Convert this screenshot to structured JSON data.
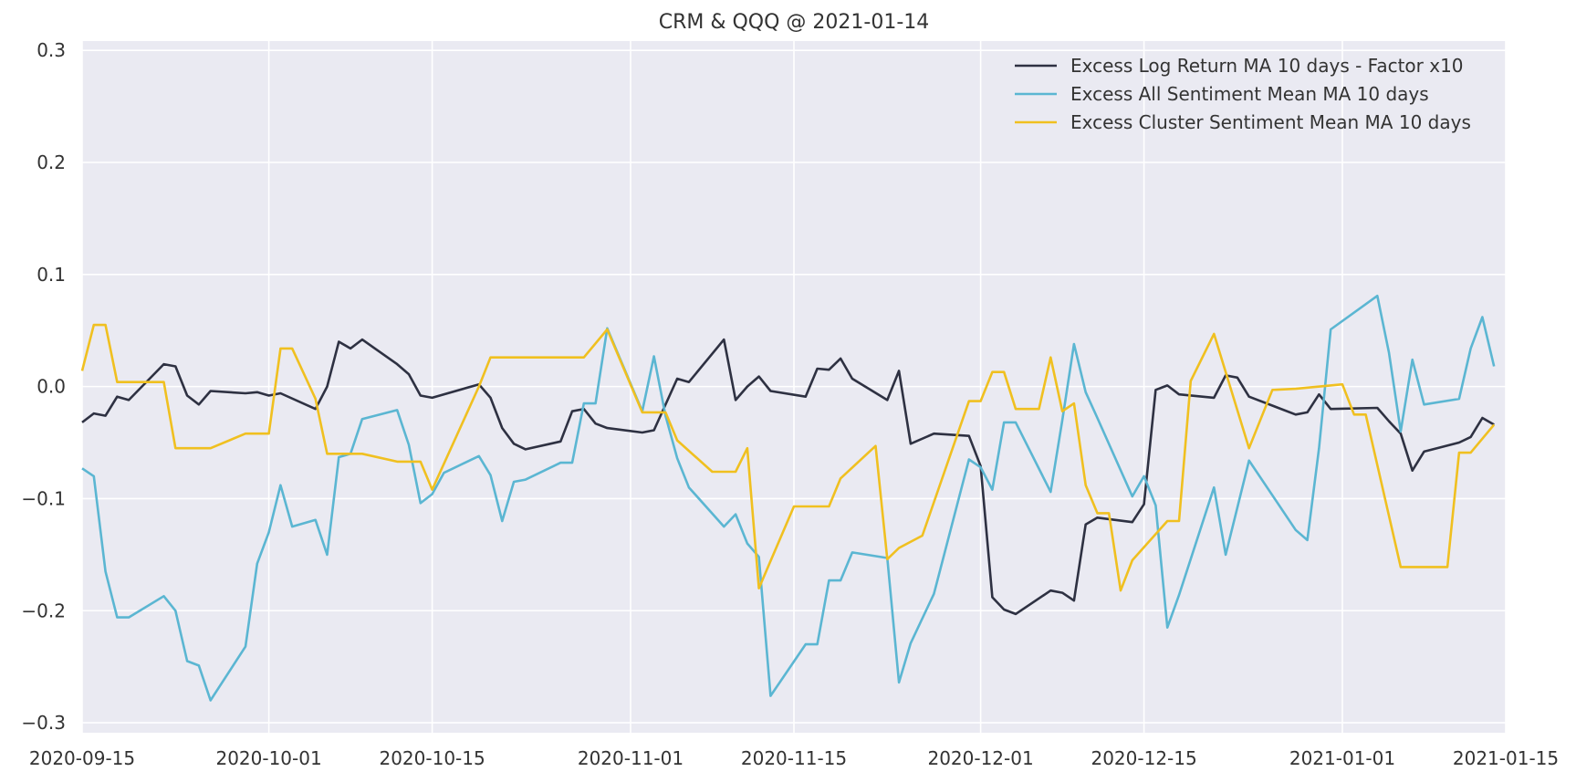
{
  "chart_data": {
    "type": "line",
    "title": "CRM & QQQ @ 2021-01-14",
    "xlabel": "",
    "ylabel": "",
    "x_axis": {
      "kind": "date",
      "range": [
        "2020-09-15",
        "2021-01-15"
      ],
      "ticks": [
        "2020-09-15",
        "2020-10-01",
        "2020-10-15",
        "2020-11-01",
        "2020-11-15",
        "2020-12-01",
        "2020-12-15",
        "2021-01-01",
        "2021-01-15"
      ]
    },
    "y_axis": {
      "range": [
        -0.3,
        0.3
      ],
      "ticks": [
        -0.3,
        -0.2,
        -0.1,
        0.0,
        0.1,
        0.2,
        0.3
      ],
      "tick_labels": [
        "−0.3",
        "−0.2",
        "−0.1",
        "0.0",
        "0.1",
        "0.2",
        "0.3"
      ]
    },
    "grid": true,
    "legend_position": "top-right",
    "background": "#EAEAF2",
    "series": [
      {
        "name": "Excess Log Return MA 10 days - Factor x10",
        "color": "#2E3142",
        "points": [
          [
            "2020-09-15",
            -0.032
          ],
          [
            "2020-09-16",
            -0.024
          ],
          [
            "2020-09-17",
            -0.026
          ],
          [
            "2020-09-18",
            -0.009
          ],
          [
            "2020-09-19",
            -0.012
          ],
          [
            "2020-09-22",
            0.02
          ],
          [
            "2020-09-23",
            0.018
          ],
          [
            "2020-09-24",
            -0.008
          ],
          [
            "2020-09-25",
            -0.016
          ],
          [
            "2020-09-26",
            -0.004
          ],
          [
            "2020-09-29",
            -0.006
          ],
          [
            "2020-09-30",
            -0.005
          ],
          [
            "2020-10-01",
            -0.008
          ],
          [
            "2020-10-02",
            -0.006
          ],
          [
            "2020-10-05",
            -0.02
          ],
          [
            "2020-10-06",
            0.0
          ],
          [
            "2020-10-07",
            0.04
          ],
          [
            "2020-10-08",
            0.034
          ],
          [
            "2020-10-09",
            0.042
          ],
          [
            "2020-10-12",
            0.02
          ],
          [
            "2020-10-13",
            0.011
          ],
          [
            "2020-10-14",
            -0.008
          ],
          [
            "2020-10-15",
            -0.01
          ],
          [
            "2020-10-19",
            0.002
          ],
          [
            "2020-10-20",
            -0.01
          ],
          [
            "2020-10-21",
            -0.037
          ],
          [
            "2020-10-22",
            -0.051
          ],
          [
            "2020-10-23",
            -0.056
          ],
          [
            "2020-10-26",
            -0.049
          ],
          [
            "2020-10-27",
            -0.022
          ],
          [
            "2020-10-28",
            -0.02
          ],
          [
            "2020-10-29",
            -0.033
          ],
          [
            "2020-10-30",
            -0.037
          ],
          [
            "2020-11-02",
            -0.041
          ],
          [
            "2020-11-03",
            -0.039
          ],
          [
            "2020-11-05",
            0.007
          ],
          [
            "2020-11-06",
            0.004
          ],
          [
            "2020-11-09",
            0.042
          ],
          [
            "2020-11-10",
            -0.012
          ],
          [
            "2020-11-11",
            0.0
          ],
          [
            "2020-11-12",
            0.009
          ],
          [
            "2020-11-13",
            -0.004
          ],
          [
            "2020-11-16",
            -0.009
          ],
          [
            "2020-11-17",
            0.016
          ],
          [
            "2020-11-18",
            0.015
          ],
          [
            "2020-11-19",
            0.025
          ],
          [
            "2020-11-20",
            0.007
          ],
          [
            "2020-11-23",
            -0.012
          ],
          [
            "2020-11-24",
            0.014
          ],
          [
            "2020-11-25",
            -0.051
          ],
          [
            "2020-11-27",
            -0.042
          ],
          [
            "2020-11-30",
            -0.044
          ],
          [
            "2020-12-01",
            -0.071
          ],
          [
            "2020-12-02",
            -0.188
          ],
          [
            "2020-12-03",
            -0.199
          ],
          [
            "2020-12-04",
            -0.203
          ],
          [
            "2020-12-07",
            -0.182
          ],
          [
            "2020-12-08",
            -0.184
          ],
          [
            "2020-12-09",
            -0.191
          ],
          [
            "2020-12-10",
            -0.123
          ],
          [
            "2020-12-11",
            -0.117
          ],
          [
            "2020-12-14",
            -0.121
          ],
          [
            "2020-12-15",
            -0.105
          ],
          [
            "2020-12-16",
            -0.003
          ],
          [
            "2020-12-17",
            0.001
          ],
          [
            "2020-12-18",
            -0.007
          ],
          [
            "2020-12-21",
            -0.01
          ],
          [
            "2020-12-22",
            0.01
          ],
          [
            "2020-12-23",
            0.008
          ],
          [
            "2020-12-24",
            -0.009
          ],
          [
            "2020-12-28",
            -0.025
          ],
          [
            "2020-12-29",
            -0.023
          ],
          [
            "2020-12-30",
            -0.007
          ],
          [
            "2020-12-31",
            -0.02
          ],
          [
            "2021-01-04",
            -0.019
          ],
          [
            "2021-01-05",
            -0.031
          ],
          [
            "2021-01-06",
            -0.042
          ],
          [
            "2021-01-07",
            -0.075
          ],
          [
            "2021-01-08",
            -0.058
          ],
          [
            "2021-01-11",
            -0.05
          ],
          [
            "2021-01-12",
            -0.045
          ],
          [
            "2021-01-13",
            -0.028
          ],
          [
            "2021-01-14",
            -0.034
          ]
        ]
      },
      {
        "name": "Excess All Sentiment Mean MA 10 days",
        "color": "#5BB6D2",
        "points": [
          [
            "2020-09-15",
            -0.073
          ],
          [
            "2020-09-16",
            -0.08
          ],
          [
            "2020-09-17",
            -0.165
          ],
          [
            "2020-09-18",
            -0.206
          ],
          [
            "2020-09-19",
            -0.206
          ],
          [
            "2020-09-22",
            -0.187
          ],
          [
            "2020-09-23",
            -0.2
          ],
          [
            "2020-09-24",
            -0.245
          ],
          [
            "2020-09-25",
            -0.249
          ],
          [
            "2020-09-26",
            -0.28
          ],
          [
            "2020-09-29",
            -0.232
          ],
          [
            "2020-09-30",
            -0.158
          ],
          [
            "2020-10-01",
            -0.13
          ],
          [
            "2020-10-02",
            -0.088
          ],
          [
            "2020-10-03",
            -0.125
          ],
          [
            "2020-10-05",
            -0.119
          ],
          [
            "2020-10-06",
            -0.15
          ],
          [
            "2020-10-07",
            -0.063
          ],
          [
            "2020-10-08",
            -0.06
          ],
          [
            "2020-10-09",
            -0.029
          ],
          [
            "2020-10-12",
            -0.021
          ],
          [
            "2020-10-13",
            -0.052
          ],
          [
            "2020-10-14",
            -0.104
          ],
          [
            "2020-10-15",
            -0.096
          ],
          [
            "2020-10-16",
            -0.077
          ],
          [
            "2020-10-19",
            -0.062
          ],
          [
            "2020-10-20",
            -0.079
          ],
          [
            "2020-10-21",
            -0.12
          ],
          [
            "2020-10-22",
            -0.085
          ],
          [
            "2020-10-23",
            -0.083
          ],
          [
            "2020-10-26",
            -0.068
          ],
          [
            "2020-10-27",
            -0.068
          ],
          [
            "2020-10-28",
            -0.015
          ],
          [
            "2020-10-29",
            -0.015
          ],
          [
            "2020-10-30",
            0.052
          ],
          [
            "2020-11-02",
            -0.022
          ],
          [
            "2020-11-03",
            0.027
          ],
          [
            "2020-11-04",
            -0.026
          ],
          [
            "2020-11-05",
            -0.064
          ],
          [
            "2020-11-06",
            -0.09
          ],
          [
            "2020-11-09",
            -0.125
          ],
          [
            "2020-11-10",
            -0.114
          ],
          [
            "2020-11-11",
            -0.14
          ],
          [
            "2020-11-12",
            -0.152
          ],
          [
            "2020-11-13",
            -0.276
          ],
          [
            "2020-11-16",
            -0.23
          ],
          [
            "2020-11-17",
            -0.23
          ],
          [
            "2020-11-18",
            -0.173
          ],
          [
            "2020-11-19",
            -0.173
          ],
          [
            "2020-11-20",
            -0.148
          ],
          [
            "2020-11-23",
            -0.153
          ],
          [
            "2020-11-24",
            -0.264
          ],
          [
            "2020-11-25",
            -0.229
          ],
          [
            "2020-11-27",
            -0.185
          ],
          [
            "2020-11-30",
            -0.065
          ],
          [
            "2020-12-01",
            -0.072
          ],
          [
            "2020-12-02",
            -0.092
          ],
          [
            "2020-12-03",
            -0.032
          ],
          [
            "2020-12-04",
            -0.032
          ],
          [
            "2020-12-07",
            -0.094
          ],
          [
            "2020-12-08",
            -0.03
          ],
          [
            "2020-12-09",
            0.038
          ],
          [
            "2020-12-10",
            -0.005
          ],
          [
            "2020-12-11",
            -0.028
          ],
          [
            "2020-12-14",
            -0.098
          ],
          [
            "2020-12-15",
            -0.08
          ],
          [
            "2020-12-16",
            -0.106
          ],
          [
            "2020-12-17",
            -0.215
          ],
          [
            "2020-12-18",
            -0.186
          ],
          [
            "2020-12-21",
            -0.09
          ],
          [
            "2020-12-22",
            -0.15
          ],
          [
            "2020-12-23",
            -0.108
          ],
          [
            "2020-12-24",
            -0.066
          ],
          [
            "2020-12-28",
            -0.128
          ],
          [
            "2020-12-29",
            -0.137
          ],
          [
            "2020-12-30",
            -0.055
          ],
          [
            "2020-12-31",
            0.051
          ],
          [
            "2021-01-04",
            0.081
          ],
          [
            "2021-01-05",
            0.03
          ],
          [
            "2021-01-06",
            -0.04
          ],
          [
            "2021-01-07",
            0.024
          ],
          [
            "2021-01-08",
            -0.016
          ],
          [
            "2021-01-11",
            -0.011
          ],
          [
            "2021-01-12",
            0.034
          ],
          [
            "2021-01-13",
            0.062
          ],
          [
            "2021-01-14",
            0.018
          ]
        ]
      },
      {
        "name": "Excess Cluster Sentiment Mean MA 10 days",
        "color": "#F0C020",
        "points": [
          [
            "2020-09-15",
            0.014
          ],
          [
            "2020-09-16",
            0.055
          ],
          [
            "2020-09-17",
            0.055
          ],
          [
            "2020-09-18",
            0.004
          ],
          [
            "2020-09-19",
            0.004
          ],
          [
            "2020-09-22",
            0.004
          ],
          [
            "2020-09-23",
            -0.055
          ],
          [
            "2020-09-24",
            -0.055
          ],
          [
            "2020-09-26",
            -0.055
          ],
          [
            "2020-09-29",
            -0.042
          ],
          [
            "2020-09-30",
            -0.042
          ],
          [
            "2020-10-01",
            -0.042
          ],
          [
            "2020-10-02",
            0.034
          ],
          [
            "2020-10-03",
            0.034
          ],
          [
            "2020-10-05",
            -0.011
          ],
          [
            "2020-10-06",
            -0.06
          ],
          [
            "2020-10-07",
            -0.06
          ],
          [
            "2020-10-09",
            -0.06
          ],
          [
            "2020-10-12",
            -0.067
          ],
          [
            "2020-10-14",
            -0.067
          ],
          [
            "2020-10-15",
            -0.092
          ],
          [
            "2020-10-19",
            0.0
          ],
          [
            "2020-10-20",
            0.026
          ],
          [
            "2020-10-28",
            0.026
          ],
          [
            "2020-10-30",
            0.051
          ],
          [
            "2020-11-02",
            -0.023
          ],
          [
            "2020-11-04",
            -0.023
          ],
          [
            "2020-11-05",
            -0.048
          ],
          [
            "2020-11-08",
            -0.076
          ],
          [
            "2020-11-10",
            -0.076
          ],
          [
            "2020-11-11",
            -0.055
          ],
          [
            "2020-11-12",
            -0.18
          ],
          [
            "2020-11-15",
            -0.107
          ],
          [
            "2020-11-18",
            -0.107
          ],
          [
            "2020-11-19",
            -0.082
          ],
          [
            "2020-11-22",
            -0.053
          ],
          [
            "2020-11-23",
            -0.154
          ],
          [
            "2020-11-24",
            -0.144
          ],
          [
            "2020-11-26",
            -0.133
          ],
          [
            "2020-11-30",
            -0.013
          ],
          [
            "2020-12-01",
            -0.013
          ],
          [
            "2020-12-02",
            0.013
          ],
          [
            "2020-12-03",
            0.013
          ],
          [
            "2020-12-04",
            -0.02
          ],
          [
            "2020-12-06",
            -0.02
          ],
          [
            "2020-12-07",
            0.026
          ],
          [
            "2020-12-08",
            -0.022
          ],
          [
            "2020-12-09",
            -0.015
          ],
          [
            "2020-12-10",
            -0.088
          ],
          [
            "2020-12-11",
            -0.113
          ],
          [
            "2020-12-12",
            -0.113
          ],
          [
            "2020-12-13",
            -0.182
          ],
          [
            "2020-12-14",
            -0.155
          ],
          [
            "2020-12-17",
            -0.12
          ],
          [
            "2020-12-18",
            -0.12
          ],
          [
            "2020-12-19",
            0.005
          ],
          [
            "2020-12-21",
            0.047
          ],
          [
            "2020-12-24",
            -0.055
          ],
          [
            "2020-12-26",
            -0.003
          ],
          [
            "2020-12-28",
            -0.002
          ],
          [
            "2021-01-01",
            0.002
          ],
          [
            "2021-01-02",
            -0.025
          ],
          [
            "2021-01-03",
            -0.025
          ],
          [
            "2021-01-06",
            -0.161
          ],
          [
            "2021-01-08",
            -0.161
          ],
          [
            "2021-01-10",
            -0.161
          ],
          [
            "2021-01-11",
            -0.059
          ],
          [
            "2021-01-12",
            -0.059
          ],
          [
            "2021-01-14",
            -0.034
          ]
        ]
      }
    ]
  }
}
